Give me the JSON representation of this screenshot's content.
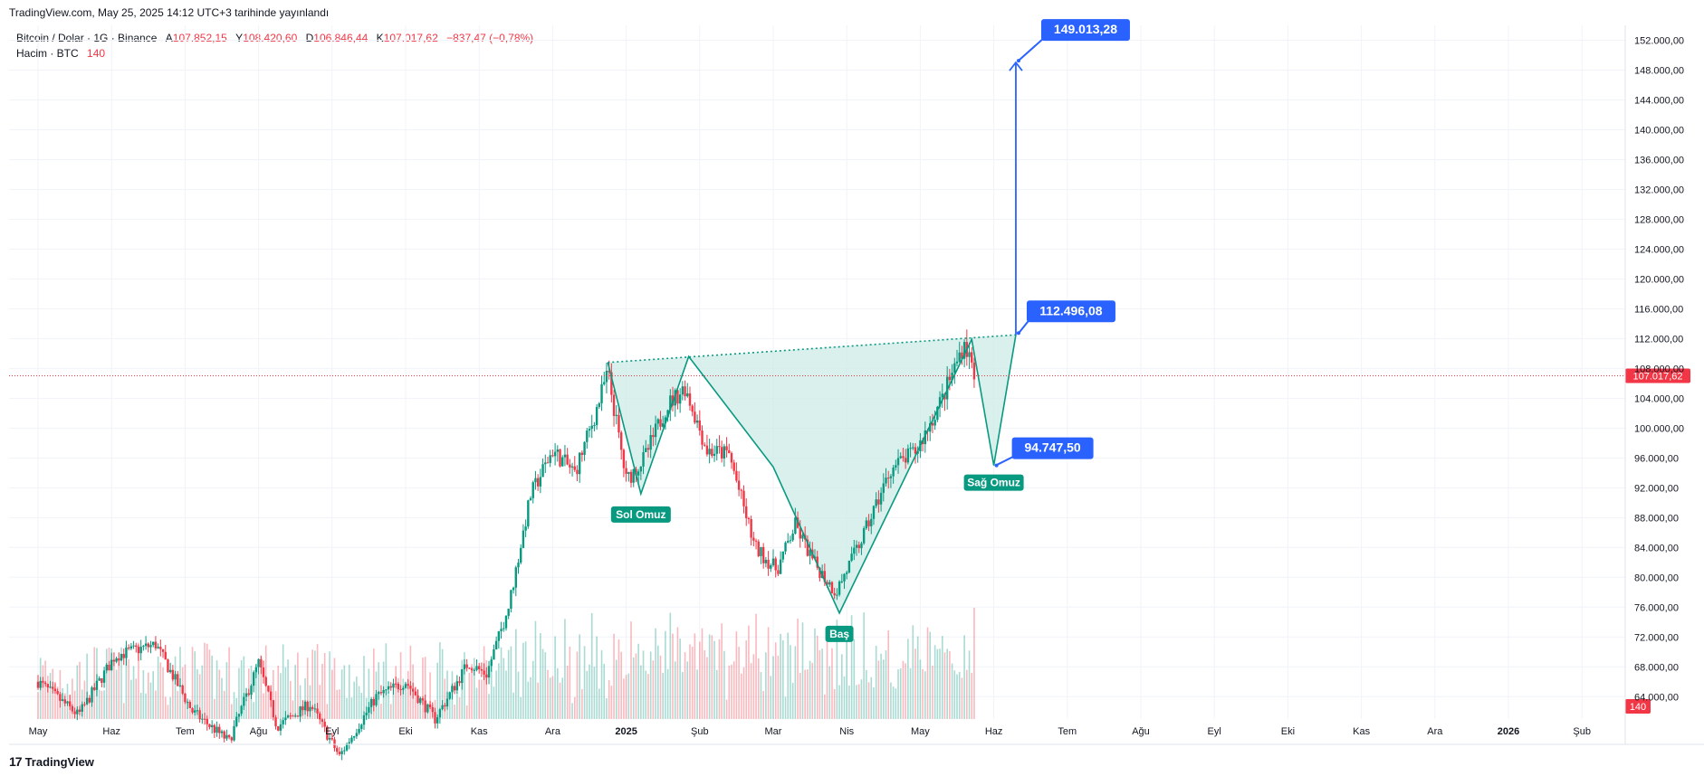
{
  "header": {
    "published": "TradingView.com, May 25, 2025 14:12 UTC+3 tarihinde yayınlandı"
  },
  "legend": {
    "symbol": "Bitcoin / Dolar · 1G · Binance",
    "open_label": "A",
    "open": "107.852,15",
    "high_label": "Y",
    "high": "108.420,60",
    "low_label": "D",
    "low": "106.846,44",
    "close_label": "K",
    "close": "107.017,62",
    "change": "−837,47 (−0,78%)",
    "volume_label": "Hacim · BTC",
    "volume": "140"
  },
  "brand": {
    "logo": "17",
    "name": "TradingView"
  },
  "colors": {
    "up": "#089981",
    "down": "#f23645",
    "pattern": "#089981",
    "pattern_fill": "#cdebe5",
    "target": "#2962ff",
    "price_line": "#f23645"
  },
  "chart_data": {
    "type": "candlestick",
    "title": "Bitcoin / Dolar · 1G · Binance",
    "x_ticks": [
      "May",
      "Haz",
      "Tem",
      "Ağu",
      "Eyl",
      "Eki",
      "Kas",
      "Ara",
      "2025",
      "Şub",
      "Mar",
      "Nis",
      "May",
      "Haz",
      "Tem",
      "Ağu",
      "Eyl",
      "Eki",
      "Kas",
      "Ara",
      "2026",
      "Şub"
    ],
    "y_ticks": [
      "64.000,00",
      "68.000,00",
      "72.000,00",
      "76.000,00",
      "80.000,00",
      "84.000,00",
      "88.000,00",
      "92.000,00",
      "96.000,00",
      "100.000,00",
      "104.000,00",
      "108.000,00",
      "112.000,00",
      "116.000,00",
      "120.000,00",
      "124.000,00",
      "128.000,00",
      "132.000,00",
      "136.000,00",
      "140.000,00",
      "144.000,00",
      "148.000,00",
      "152.000,00"
    ],
    "ylim": [
      61000,
      154000
    ],
    "x_range_months": [
      "2024-05",
      "2026-02"
    ],
    "last_price": 107017.62,
    "last_price_label": "107.017,62",
    "last_volume_label": "140",
    "price_path": [
      {
        "t": 0.0,
        "p": 66000
      },
      {
        "t": 0.55,
        "p": 61500
      },
      {
        "t": 1.05,
        "p": 69500
      },
      {
        "t": 1.6,
        "p": 71000
      },
      {
        "t": 2.1,
        "p": 62000
      },
      {
        "t": 2.6,
        "p": 58000
      },
      {
        "t": 3.0,
        "p": 68500
      },
      {
        "t": 3.25,
        "p": 60000
      },
      {
        "t": 3.7,
        "p": 63000
      },
      {
        "t": 4.1,
        "p": 56000
      },
      {
        "t": 4.6,
        "p": 64000
      },
      {
        "t": 5.0,
        "p": 66000
      },
      {
        "t": 5.4,
        "p": 61000
      },
      {
        "t": 5.85,
        "p": 68500
      },
      {
        "t": 6.1,
        "p": 67000
      },
      {
        "t": 6.4,
        "p": 76000
      },
      {
        "t": 6.7,
        "p": 91000
      },
      {
        "t": 7.0,
        "p": 97000
      },
      {
        "t": 7.3,
        "p": 94000
      },
      {
        "t": 7.55,
        "p": 101000
      },
      {
        "t": 7.75,
        "p": 107500
      },
      {
        "t": 8.0,
        "p": 93000
      },
      {
        "t": 8.25,
        "p": 96000
      },
      {
        "t": 8.55,
        "p": 103000
      },
      {
        "t": 8.8,
        "p": 105500
      },
      {
        "t": 9.1,
        "p": 97000
      },
      {
        "t": 9.4,
        "p": 96500
      },
      {
        "t": 9.75,
        "p": 84000
      },
      {
        "t": 10.05,
        "p": 81000
      },
      {
        "t": 10.3,
        "p": 87000
      },
      {
        "t": 10.55,
        "p": 82000
      },
      {
        "t": 10.85,
        "p": 78000
      },
      {
        "t": 11.2,
        "p": 85000
      },
      {
        "t": 11.6,
        "p": 94500
      },
      {
        "t": 11.95,
        "p": 97000
      },
      {
        "t": 12.3,
        "p": 104000
      },
      {
        "t": 12.6,
        "p": 111500
      },
      {
        "t": 12.75,
        "p": 107000
      }
    ],
    "volume_scale": 100000,
    "annotations": {
      "neckline_start": {
        "t": 7.75,
        "p": 108800
      },
      "neckline_end": {
        "t": 13.3,
        "p": 112500
      },
      "pattern_points": [
        {
          "t": 7.75,
          "p": 108800
        },
        {
          "t": 8.2,
          "p": 91200
        },
        {
          "t": 8.85,
          "p": 109600
        },
        {
          "t": 10.0,
          "p": 94800
        },
        {
          "t": 10.9,
          "p": 75200
        },
        {
          "t": 12.7,
          "p": 111900
        },
        {
          "t": 13.0,
          "p": 95000
        },
        {
          "t": 13.3,
          "p": 112500
        }
      ],
      "labels": [
        {
          "text": "Sol Omuz",
          "t": 8.2,
          "p": 91200
        },
        {
          "text": "Baş",
          "t": 10.9,
          "p": 75200
        },
        {
          "text": "Sağ Omuz",
          "t": 13.0,
          "p": 95000
        }
      ],
      "targets": [
        {
          "text": "149.013,28",
          "t": 13.3,
          "p": 149013.28
        },
        {
          "text": "112.496,08",
          "t": 13.3,
          "p": 112496.08
        },
        {
          "text": "94.747,50",
          "t": 13.0,
          "p": 94747.5
        }
      ]
    }
  }
}
